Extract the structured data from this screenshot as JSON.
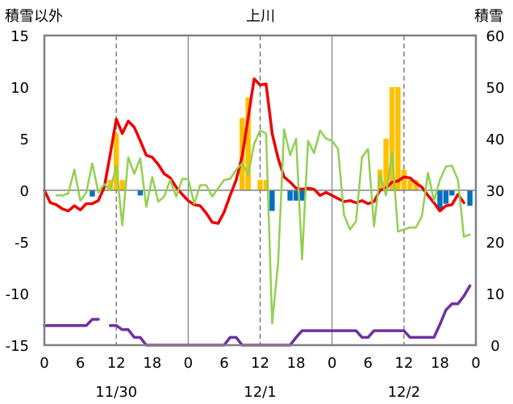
{
  "chart_data": {
    "type": "line",
    "title": "上川",
    "ylabel_left": "積雪以外",
    "ylabel_right": "積雪",
    "y_left": {
      "min": -15,
      "max": 15,
      "ticks": [
        "15",
        "10",
        "5",
        "0",
        "-5",
        "-10",
        "-15"
      ]
    },
    "y_right": {
      "min": 0,
      "max": 60,
      "ticks": [
        "60",
        "50",
        "40",
        "30",
        "20",
        "10",
        "0"
      ]
    },
    "x": {
      "min": 0,
      "max": 72,
      "unit": "hour",
      "ticks": [
        "0",
        "6",
        "12",
        "18",
        "0",
        "6",
        "12",
        "18",
        "0",
        "6",
        "12",
        "18",
        "0"
      ],
      "day_labels": [
        "11/30",
        "12/1",
        "12/2"
      ]
    },
    "colors": {
      "temperature": "#ee0000",
      "wind": "#92d050",
      "snow_depth": "#7030a0",
      "bar_positive": "#ffc000",
      "bar_negative": "#0070c0"
    },
    "series": [
      {
        "kind": "line",
        "axis": "left",
        "color": "#ee0000",
        "points": [
          [
            0,
            0
          ],
          [
            1,
            -1.2
          ],
          [
            2,
            -1.4
          ],
          [
            3,
            -1.8
          ],
          [
            4,
            -2.0
          ],
          [
            5,
            -1.5
          ],
          [
            6,
            -1.9
          ],
          [
            7,
            -1.3
          ],
          [
            8,
            -1.3
          ],
          [
            9,
            -1
          ],
          [
            10,
            0.3
          ],
          [
            11,
            3.5
          ],
          [
            12,
            6.9
          ],
          [
            13,
            5.5
          ],
          [
            14,
            6.7
          ],
          [
            15,
            6.1
          ],
          [
            16,
            4.8
          ],
          [
            17,
            3.4
          ],
          [
            18,
            3.2
          ],
          [
            19,
            2.5
          ],
          [
            20,
            1.6
          ],
          [
            21,
            1.2
          ],
          [
            22,
            0.3
          ],
          [
            23,
            -0.4
          ],
          [
            24,
            -1.0
          ],
          [
            25,
            -1.4
          ],
          [
            26,
            -1.5
          ],
          [
            27,
            -2.2
          ],
          [
            28,
            -3.1
          ],
          [
            29,
            -3.2
          ],
          [
            30,
            -2.1
          ],
          [
            31,
            -0.5
          ],
          [
            32,
            1.0
          ],
          [
            33,
            3.3
          ],
          [
            34,
            7.0
          ],
          [
            35,
            10.8
          ],
          [
            36,
            10.2
          ],
          [
            37,
            10.3
          ],
          [
            38,
            5.5
          ],
          [
            39,
            3.1
          ],
          [
            40,
            1.3
          ],
          [
            41,
            0.8
          ],
          [
            42,
            0.2
          ],
          [
            43,
            0.1
          ],
          [
            44,
            0.2
          ],
          [
            45,
            0.1
          ],
          [
            46,
            -0.5
          ],
          [
            47,
            -0.2
          ],
          [
            48,
            -0.5
          ],
          [
            49,
            -0.8
          ],
          [
            50,
            -1.1
          ],
          [
            51,
            -1.0
          ],
          [
            52,
            -1.2
          ],
          [
            53,
            -1.0
          ],
          [
            54,
            -1.3
          ],
          [
            55,
            -1.1
          ],
          [
            56,
            0.0
          ],
          [
            57,
            0.2
          ],
          [
            58,
            0.8
          ],
          [
            59,
            0.9
          ],
          [
            60,
            1.3
          ],
          [
            61,
            1.2
          ],
          [
            62,
            0.7
          ],
          [
            63,
            0.3
          ],
          [
            64,
            -0.5
          ],
          [
            65,
            -1.2
          ],
          [
            66,
            -2.0
          ],
          [
            67,
            -1.5
          ],
          [
            68,
            -1.4
          ],
          [
            69,
            -0.4
          ],
          [
            70,
            -1.2
          ]
        ]
      },
      {
        "kind": "line",
        "axis": "left",
        "color": "#92d050",
        "points": [
          [
            2,
            -0.5
          ],
          [
            3,
            -0.5
          ],
          [
            4,
            -0.3
          ],
          [
            5,
            2.0
          ],
          [
            6,
            -1.0
          ],
          [
            7,
            -0.2
          ],
          [
            8,
            2.6
          ],
          [
            9,
            -0.2
          ],
          [
            10,
            0.6
          ],
          [
            11,
            0.0
          ],
          [
            12,
            2.4
          ],
          [
            13,
            -3.4
          ],
          [
            14,
            3.2
          ],
          [
            15,
            1.6
          ],
          [
            16,
            3.1
          ],
          [
            17,
            -1.6
          ],
          [
            18,
            1.3
          ],
          [
            19,
            -1.1
          ],
          [
            20,
            -0.6
          ],
          [
            21,
            1.0
          ],
          [
            22,
            -0.6
          ],
          [
            23,
            1.1
          ],
          [
            24,
            1.1
          ],
          [
            25,
            -1.3
          ],
          [
            26,
            0.5
          ],
          [
            27,
            0.5
          ],
          [
            28,
            -0.6
          ],
          [
            29,
            0.2
          ],
          [
            30,
            1.0
          ],
          [
            31,
            1.1
          ],
          [
            32,
            2.0
          ],
          [
            33,
            2.6
          ],
          [
            34,
            1.5
          ],
          [
            35,
            4.5
          ],
          [
            36,
            5.8
          ],
          [
            37,
            5.5
          ],
          [
            38,
            -12.9
          ],
          [
            39,
            -7.0
          ],
          [
            40,
            5.9
          ],
          [
            41,
            3.4
          ],
          [
            42,
            5.0
          ],
          [
            43,
            -6.7
          ],
          [
            44,
            4.8
          ],
          [
            45,
            3.6
          ],
          [
            46,
            5.8
          ],
          [
            47,
            5.0
          ],
          [
            48,
            4.8
          ],
          [
            49,
            4.0
          ],
          [
            50,
            -2.4
          ],
          [
            51,
            -3.8
          ],
          [
            52,
            -3.0
          ],
          [
            53,
            3.2
          ],
          [
            54,
            4.0
          ],
          [
            55,
            -3.5
          ],
          [
            56,
            1.5
          ],
          [
            57,
            -0.5
          ],
          [
            58,
            3.7
          ],
          [
            59,
            -4.0
          ],
          [
            60,
            -3.8
          ],
          [
            61,
            -3.6
          ],
          [
            62,
            -3.6
          ],
          [
            63,
            -2.5
          ],
          [
            64,
            1.7
          ],
          [
            65,
            -1.0
          ],
          [
            66,
            1.0
          ],
          [
            67,
            2.3
          ],
          [
            68,
            2.4
          ],
          [
            69,
            1.0
          ],
          [
            70,
            -4.5
          ],
          [
            71,
            -4.3
          ]
        ]
      },
      {
        "kind": "line",
        "axis": "right",
        "color": "#7030a0",
        "segments": [
          [
            [
              0,
              3.8
            ],
            [
              1,
              3.8
            ],
            [
              2,
              3.8
            ],
            [
              3,
              3.8
            ],
            [
              4,
              3.8
            ],
            [
              5,
              3.8
            ],
            [
              6,
              3.8
            ],
            [
              7,
              3.8
            ],
            [
              8,
              5
            ],
            [
              9,
              5
            ]
          ],
          [
            [
              11,
              3.8
            ],
            [
              12,
              3.8
            ],
            [
              13,
              3
            ],
            [
              14,
              3
            ],
            [
              15,
              1.5
            ],
            [
              16,
              1.5
            ],
            [
              17,
              0
            ],
            [
              18,
              0
            ],
            [
              19,
              0
            ],
            [
              20,
              0
            ],
            [
              21,
              0
            ],
            [
              22,
              0
            ],
            [
              23,
              0
            ],
            [
              24,
              0
            ],
            [
              25,
              0
            ],
            [
              26,
              0
            ],
            [
              27,
              0
            ],
            [
              28,
              0
            ],
            [
              29,
              0
            ],
            [
              30,
              0
            ],
            [
              31,
              1.5
            ],
            [
              32,
              1.5
            ],
            [
              33,
              0
            ],
            [
              34,
              0
            ],
            [
              35,
              0
            ],
            [
              36,
              0
            ],
            [
              37,
              0
            ],
            [
              38,
              0
            ],
            [
              39,
              0
            ],
            [
              40,
              0
            ],
            [
              41,
              0
            ],
            [
              42,
              1.5
            ],
            [
              43,
              2.8
            ],
            [
              44,
              2.8
            ],
            [
              45,
              2.8
            ],
            [
              46,
              2.8
            ],
            [
              47,
              2.8
            ],
            [
              48,
              2.8
            ],
            [
              49,
              2.8
            ],
            [
              50,
              2.8
            ],
            [
              51,
              2.8
            ],
            [
              52,
              2.8
            ],
            [
              53,
              1.5
            ],
            [
              54,
              1.5
            ],
            [
              55,
              2.8
            ],
            [
              56,
              2.8
            ],
            [
              57,
              2.8
            ],
            [
              58,
              2.8
            ],
            [
              59,
              2.8
            ],
            [
              60,
              2.8
            ],
            [
              61,
              1.5
            ],
            [
              62,
              1.5
            ],
            [
              63,
              1.5
            ],
            [
              64,
              1.5
            ],
            [
              65,
              1.5
            ],
            [
              66,
              4
            ],
            [
              67,
              6.8
            ],
            [
              68,
              8
            ],
            [
              69,
              8
            ],
            [
              70,
              9.5
            ],
            [
              71,
              11.5
            ]
          ]
        ]
      }
    ],
    "bars": [
      {
        "x": 8,
        "value": -0.6
      },
      {
        "x": 11,
        "value": 1
      },
      {
        "x": 12,
        "value": 5.5
      },
      {
        "x": 13,
        "value": 1
      },
      {
        "x": 16,
        "value": -0.5
      },
      {
        "x": 33,
        "value": 7
      },
      {
        "x": 34,
        "value": 9
      },
      {
        "x": 36,
        "value": 1
      },
      {
        "x": 37,
        "value": 1
      },
      {
        "x": 38,
        "value": -2
      },
      {
        "x": 41,
        "value": -1
      },
      {
        "x": 42,
        "value": -1
      },
      {
        "x": 43,
        "value": -1
      },
      {
        "x": 56,
        "value": 2
      },
      {
        "x": 57,
        "value": 5
      },
      {
        "x": 58,
        "value": 10
      },
      {
        "x": 59,
        "value": 10
      },
      {
        "x": 60,
        "value": 2
      },
      {
        "x": 61,
        "value": 1
      },
      {
        "x": 62,
        "value": 1
      },
      {
        "x": 66,
        "value": -2
      },
      {
        "x": 67,
        "value": -1.3
      },
      {
        "x": 68,
        "value": -0.5
      },
      {
        "x": 71,
        "value": -1.5
      }
    ]
  }
}
